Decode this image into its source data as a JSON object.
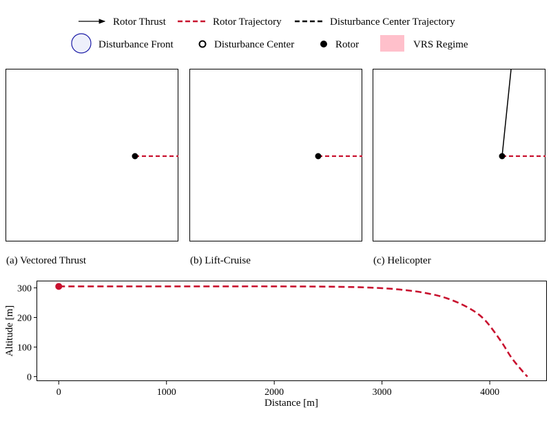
{
  "legend": {
    "items": [
      {
        "label": "Rotor Thrust",
        "kind": "arrow",
        "color": "#000000"
      },
      {
        "label": "Rotor Trajectory",
        "kind": "dashed-line",
        "color": "#c8102e"
      },
      {
        "label": "Disturbance Center Trajectory",
        "kind": "dashed-line",
        "color": "#000000"
      },
      {
        "label": "Disturbance Front",
        "kind": "circle",
        "color": "#1a1aa6"
      },
      {
        "label": "Disturbance Center",
        "kind": "hollow-dot",
        "color": "#000000"
      },
      {
        "label": "Rotor",
        "kind": "dot",
        "color": "#000000"
      },
      {
        "label": "VRS Regime",
        "kind": "patch",
        "color": "#ffc0cb"
      }
    ]
  },
  "panels": [
    {
      "caption": "(a) Vectored Thrust",
      "thrust": false
    },
    {
      "caption": "(b) Lift-Cruise",
      "thrust": false
    },
    {
      "caption": "(c) Helicopter",
      "thrust": true
    }
  ],
  "chart_data": {
    "type": "line",
    "xlabel": "Distance [m]",
    "ylabel": "Altitude [m]",
    "xlim": [
      -200,
      4530
    ],
    "ylim": [
      -15,
      322
    ],
    "xticks": [
      0,
      1000,
      2000,
      3000,
      4000
    ],
    "yticks": [
      0,
      100,
      200,
      300
    ],
    "grid": false,
    "series": [
      {
        "name": "Rotor Trajectory",
        "color": "#c8102e",
        "style": "dashed",
        "x": [
          0,
          500,
          1000,
          1500,
          2000,
          2500,
          2800,
          3000,
          3200,
          3400,
          3600,
          3800,
          3950,
          4100,
          4200,
          4300,
          4350
        ],
        "y": [
          305,
          305,
          305,
          305,
          305,
          304,
          302,
          299,
          293,
          283,
          265,
          233,
          193,
          122,
          65,
          20,
          0
        ]
      }
    ],
    "rotor_position": {
      "x": 0,
      "y": 305,
      "color": "#c8102e"
    }
  }
}
